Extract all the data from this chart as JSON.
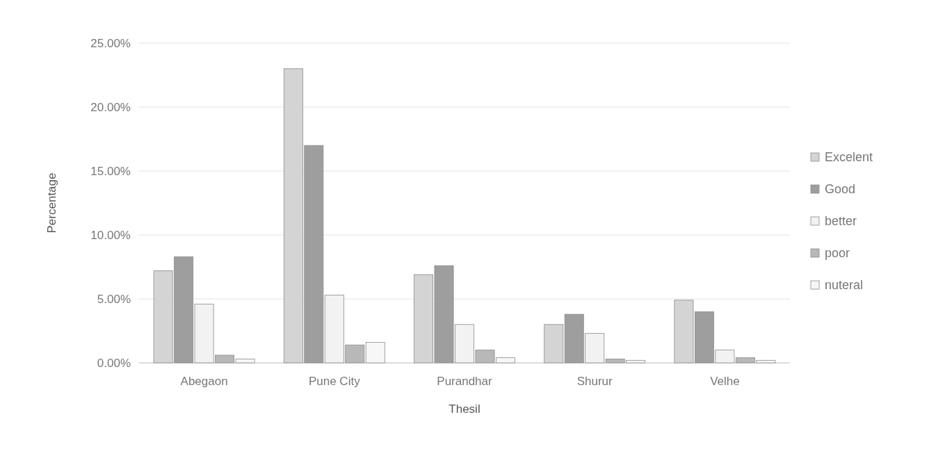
{
  "chart_data": {
    "type": "bar",
    "xlabel": "Thesil",
    "ylabel": "Percentage",
    "categories": [
      "Abegaon",
      "Pune City",
      "Purandhar",
      "Shurur",
      "Velhe"
    ],
    "series": [
      {
        "name": "Excelent",
        "color": "#d4d4d4",
        "values": [
          7.2,
          23,
          6.9,
          3,
          4.9
        ]
      },
      {
        "name": "Good",
        "color": "#9e9e9e",
        "values": [
          8.3,
          17,
          7.6,
          3.8,
          4
        ]
      },
      {
        "name": "better",
        "color": "#f2f2f2",
        "values": [
          4.6,
          5.3,
          3,
          2.3,
          1
        ]
      },
      {
        "name": "poor",
        "color": "#b8b8b8",
        "values": [
          0.6,
          1.4,
          1,
          0.3,
          0.4
        ]
      },
      {
        "name": "nuteral",
        "color": "#f7f7f7",
        "values": [
          0.3,
          1.6,
          0.4,
          0.2,
          0.2
        ]
      }
    ],
    "ylim": [
      0,
      25
    ],
    "yticks": [
      {
        "value": 0,
        "label": "0.00%"
      },
      {
        "value": 5,
        "label": "5.00%"
      },
      {
        "value": 10,
        "label": "10.00%"
      },
      {
        "value": 15,
        "label": "15.00%"
      },
      {
        "value": 20,
        "label": "20.00%"
      },
      {
        "value": 25,
        "label": "25.00%"
      }
    ],
    "grid": "y",
    "legend": "right"
  }
}
